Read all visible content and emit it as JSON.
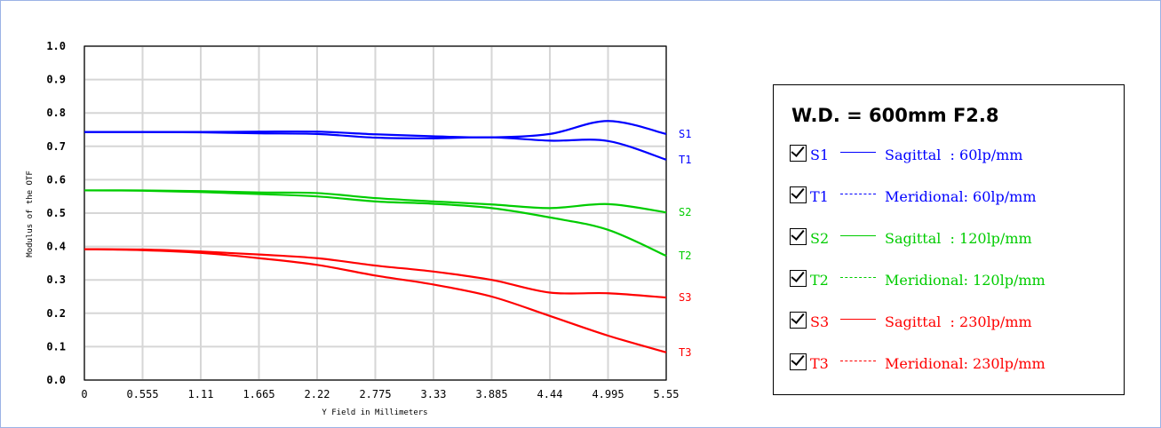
{
  "chart_data": {
    "type": "line",
    "xlabel": "Y Field in Millimeters",
    "ylabel": "Modulus of the OTF",
    "xlim": [
      0,
      5.55
    ],
    "ylim": [
      0,
      1.0
    ],
    "x_ticks": [
      "0",
      "0.555",
      "1.11",
      "1.665",
      "2.22",
      "2.775",
      "3.33",
      "3.885",
      "4.44",
      "4.995",
      "5.55"
    ],
    "y_ticks": [
      "0.0",
      "0.1",
      "0.2",
      "0.3",
      "0.4",
      "0.5",
      "0.6",
      "0.7",
      "0.8",
      "0.9",
      "1.0"
    ],
    "grid": true,
    "x": [
      0,
      0.555,
      1.11,
      1.665,
      2.22,
      2.775,
      3.33,
      3.885,
      4.44,
      4.995,
      5.55
    ],
    "series": [
      {
        "name": "S1",
        "color": "#0000ff",
        "values": [
          0.743,
          0.743,
          0.743,
          0.744,
          0.744,
          0.736,
          0.73,
          0.727,
          0.737,
          0.776,
          0.737
        ]
      },
      {
        "name": "T1",
        "color": "#0000ff",
        "values": [
          0.743,
          0.743,
          0.742,
          0.739,
          0.737,
          0.726,
          0.724,
          0.727,
          0.717,
          0.716,
          0.66
        ]
      },
      {
        "name": "S2",
        "color": "#00cc00",
        "values": [
          0.568,
          0.568,
          0.566,
          0.562,
          0.56,
          0.545,
          0.535,
          0.526,
          0.515,
          0.527,
          0.502
        ]
      },
      {
        "name": "T2",
        "color": "#00cc00",
        "values": [
          0.568,
          0.567,
          0.563,
          0.557,
          0.55,
          0.535,
          0.528,
          0.515,
          0.487,
          0.45,
          0.372
        ]
      },
      {
        "name": "S3",
        "color": "#ff0000",
        "values": [
          0.392,
          0.391,
          0.385,
          0.376,
          0.365,
          0.343,
          0.325,
          0.3,
          0.262,
          0.26,
          0.247
        ]
      },
      {
        "name": "T3",
        "color": "#ff0000",
        "values": [
          0.392,
          0.389,
          0.381,
          0.365,
          0.345,
          0.313,
          0.286,
          0.25,
          0.192,
          0.133,
          0.083
        ]
      }
    ]
  },
  "legend": {
    "title": "W.D. = 600mm F2.8",
    "items": [
      {
        "name": "S1",
        "color": "#0000ff",
        "style": "solid",
        "desc": "Sagittal  : 60lp/mm"
      },
      {
        "name": "T1",
        "color": "#0000ff",
        "style": "dashed",
        "desc": "Meridional: 60lp/mm"
      },
      {
        "name": "S2",
        "color": "#00cc00",
        "style": "solid",
        "desc": "Sagittal  : 120lp/mm"
      },
      {
        "name": "T2",
        "color": "#00cc00",
        "style": "dashed",
        "desc": "Meridional: 120lp/mm"
      },
      {
        "name": "S3",
        "color": "#ff0000",
        "style": "solid",
        "desc": "Sagittal  : 230lp/mm"
      },
      {
        "name": "T3",
        "color": "#ff0000",
        "style": "dashed",
        "desc": "Meridional: 230lp/mm"
      }
    ]
  }
}
